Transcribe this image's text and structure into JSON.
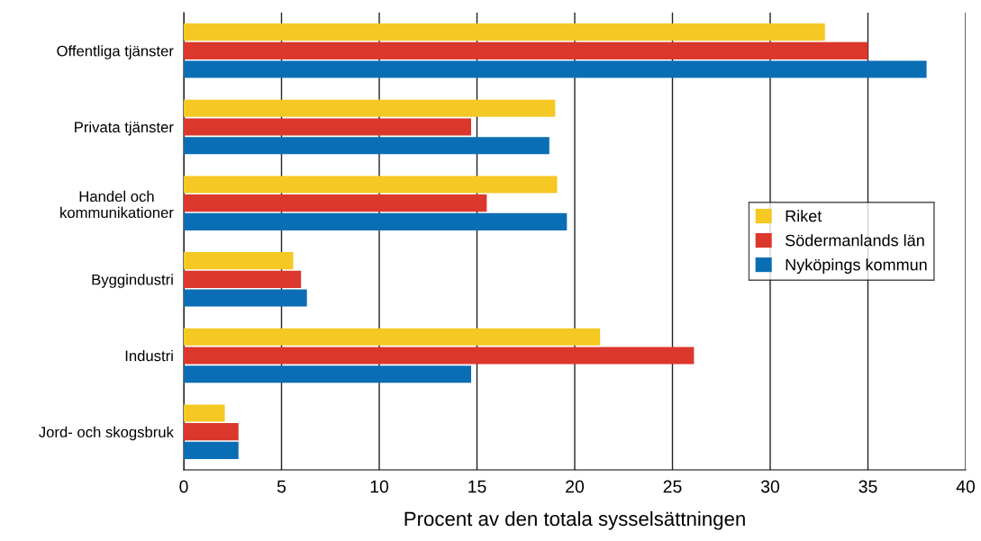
{
  "chart_data": {
    "type": "bar",
    "orientation": "horizontal",
    "xlabel": "Procent av den totala sysselsättningen",
    "categories": [
      "Offentliga tjänster",
      "Privata tjänster",
      "Handel och\nkommunikationer",
      "Byggindustri",
      "Industri",
      "Jord- och skogsbruk"
    ],
    "series": [
      {
        "name": "Riket",
        "color": "#f5c823",
        "values": [
          32.8,
          19.0,
          19.1,
          5.6,
          21.3,
          2.1
        ]
      },
      {
        "name": "Södermanlands län",
        "color": "#dc372d",
        "values": [
          35.0,
          14.7,
          15.5,
          6.0,
          26.1,
          2.8
        ]
      },
      {
        "name": "Nyköpings kommun",
        "color": "#0a6eb4",
        "values": [
          38.0,
          18.7,
          19.6,
          6.3,
          14.7,
          2.8
        ]
      }
    ],
    "xlim": [
      0,
      40
    ],
    "xticks": [
      0,
      5,
      10,
      15,
      20,
      25,
      30,
      35,
      40
    ],
    "grid": "x",
    "legend": "right"
  }
}
